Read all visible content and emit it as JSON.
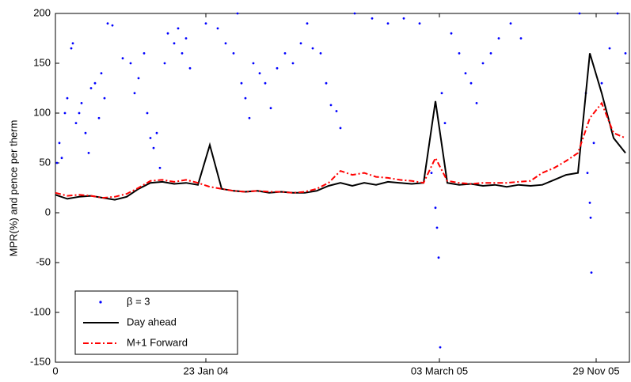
{
  "chart_data": {
    "type": "line",
    "ylabel": "MPR(%)  and pence per therm",
    "xlim": [
      0,
      725
    ],
    "xticks": [
      0,
      {
        "value": 190,
        "label": "23 Jan 04"
      },
      {
        "value": 485,
        "label": "03 March 05"
      },
      {
        "value": 683,
        "label": "29 Nov 05"
      }
    ],
    "ylim": [
      -150,
      200
    ],
    "yticks": [
      -150,
      -100,
      -50,
      0,
      50,
      100,
      150,
      200
    ],
    "legend": "lower left",
    "series": [
      {
        "name": "β = 3",
        "color": "#0000ff",
        "style": "dots",
        "x": [
          2,
          5,
          8,
          12,
          15,
          20,
          22,
          26,
          30,
          33,
          38,
          42,
          45,
          50,
          55,
          58,
          62,
          66,
          72,
          85,
          95,
          100,
          105,
          112,
          116,
          120,
          124,
          128,
          132,
          138,
          142,
          150,
          155,
          160,
          165,
          170,
          190,
          205,
          215,
          225,
          230,
          235,
          240,
          245,
          250,
          258,
          265,
          272,
          280,
          290,
          300,
          310,
          318,
          325,
          335,
          342,
          348,
          355,
          360,
          378,
          400,
          420,
          440,
          460,
          475,
          480,
          482,
          484,
          486,
          488,
          492,
          500,
          510,
          518,
          525,
          532,
          540,
          550,
          560,
          575,
          588,
          662,
          670,
          672,
          675,
          676,
          677,
          680,
          690,
          700,
          710,
          720
        ],
        "values": [
          50,
          70,
          55,
          100,
          115,
          165,
          170,
          90,
          100,
          110,
          80,
          60,
          125,
          130,
          95,
          140,
          115,
          190,
          188,
          155,
          150,
          120,
          135,
          160,
          100,
          75,
          65,
          80,
          45,
          150,
          180,
          170,
          185,
          160,
          175,
          145,
          190,
          185,
          170,
          160,
          200,
          130,
          115,
          95,
          150,
          140,
          130,
          105,
          145,
          160,
          150,
          170,
          190,
          165,
          160,
          130,
          108,
          102,
          85,
          200,
          195,
          190,
          195,
          190,
          40,
          5,
          -15,
          -45,
          -135,
          120,
          90,
          180,
          160,
          140,
          130,
          110,
          150,
          160,
          175,
          190,
          175,
          200,
          120,
          40,
          10,
          -5,
          -60,
          70,
          130,
          165,
          200,
          160
        ]
      },
      {
        "name": "Day ahead",
        "color": "#000000",
        "style": "solid",
        "x": [
          0,
          15,
          30,
          45,
          60,
          75,
          90,
          105,
          120,
          135,
          150,
          165,
          180,
          195,
          210,
          225,
          240,
          255,
          270,
          285,
          300,
          315,
          330,
          345,
          360,
          375,
          390,
          405,
          420,
          435,
          450,
          465,
          480,
          495,
          510,
          525,
          540,
          555,
          570,
          585,
          600,
          615,
          630,
          645,
          660,
          675,
          690,
          705,
          720
        ],
        "values": [
          18,
          14,
          16,
          17,
          15,
          13,
          16,
          24,
          30,
          31,
          29,
          30,
          28,
          68,
          24,
          22,
          21,
          22,
          20,
          21,
          20,
          20,
          22,
          27,
          30,
          27,
          30,
          28,
          31,
          30,
          29,
          30,
          112,
          30,
          28,
          29,
          27,
          28,
          26,
          28,
          27,
          28,
          33,
          38,
          40,
          160,
          120,
          75,
          60
        ]
      },
      {
        "name": "M+1 Forward",
        "color": "#ff0000",
        "style": "dashdot",
        "x": [
          0,
          15,
          30,
          45,
          60,
          75,
          90,
          105,
          120,
          135,
          150,
          165,
          180,
          195,
          210,
          225,
          240,
          255,
          270,
          285,
          300,
          315,
          330,
          345,
          360,
          375,
          390,
          405,
          420,
          435,
          450,
          465,
          480,
          495,
          510,
          525,
          540,
          555,
          570,
          585,
          600,
          615,
          630,
          645,
          660,
          675,
          690,
          705,
          720
        ],
        "values": [
          20,
          17,
          18,
          17,
          15,
          16,
          19,
          25,
          32,
          33,
          31,
          33,
          30,
          26,
          24,
          22,
          21,
          22,
          21,
          21,
          20,
          21,
          24,
          30,
          42,
          38,
          40,
          36,
          35,
          33,
          32,
          30,
          55,
          32,
          30,
          29,
          30,
          30,
          30,
          31,
          32,
          40,
          45,
          52,
          60,
          95,
          110,
          80,
          75
        ]
      }
    ]
  }
}
